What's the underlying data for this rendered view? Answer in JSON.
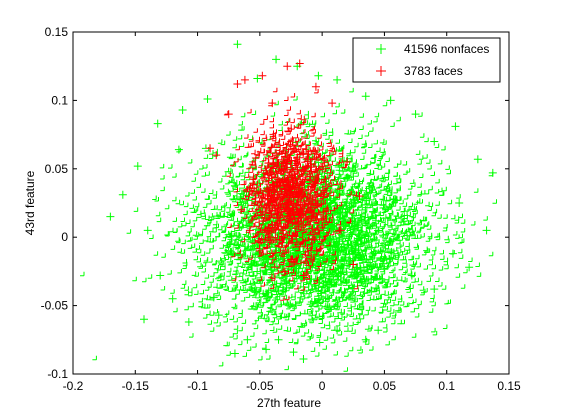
{
  "chart_data": {
    "type": "scatter",
    "title": "",
    "xlabel": "27th feature",
    "ylabel": "43rd feature",
    "xlim": [
      -0.2,
      0.15
    ],
    "ylim": [
      -0.1,
      0.15
    ],
    "xticks": [
      -0.2,
      -0.15,
      -0.1,
      -0.05,
      0,
      0.05,
      0.1,
      0.15
    ],
    "xtick_labels": [
      "-0.2",
      "-0.15",
      "-0.1",
      "-0.05",
      "0",
      "0.05",
      "0.1",
      "0.15"
    ],
    "yticks": [
      -0.1,
      -0.05,
      0,
      0.05,
      0.1,
      0.15
    ],
    "ytick_labels": [
      "-0.1",
      "-0.05",
      "0",
      "0.05",
      "0.1",
      "0.15"
    ],
    "grid": false,
    "legend_position": "top-right",
    "marker": "+",
    "series": [
      {
        "name": "41596 nonfaces",
        "color": "#00ff00",
        "count": 41596,
        "distribution": {
          "mean_x": -0.005,
          "mean_y": 0.0,
          "sd_x": 0.045,
          "sd_y": 0.032
        },
        "points": [
          [
            -0.17,
            0.015
          ],
          [
            -0.16,
            0.031
          ],
          [
            -0.143,
            -0.06
          ],
          [
            -0.14,
            0.005
          ],
          [
            -0.148,
            0.052
          ],
          [
            -0.13,
            -0.028
          ],
          [
            -0.12,
            -0.045
          ],
          [
            -0.107,
            -0.062
          ],
          [
            -0.087,
            -0.044
          ],
          [
            -0.083,
            -0.057
          ],
          [
            -0.07,
            -0.085
          ],
          [
            -0.06,
            -0.075
          ],
          [
            -0.045,
            -0.082
          ],
          [
            -0.035,
            -0.075
          ],
          [
            -0.023,
            -0.084
          ],
          [
            -0.015,
            -0.089
          ],
          [
            -0.002,
            -0.077
          ],
          [
            0.012,
            -0.068
          ],
          [
            0.035,
            -0.075
          ],
          [
            0.045,
            -0.068
          ],
          [
            0.072,
            -0.028
          ],
          [
            0.09,
            -0.038
          ],
          [
            0.105,
            -0.012
          ],
          [
            0.118,
            -0.022
          ],
          [
            0.132,
            0.005
          ],
          [
            0.137,
            0.047
          ],
          [
            0.125,
            0.057
          ],
          [
            0.11,
            0.025
          ],
          [
            0.107,
            0.081
          ],
          [
            0.09,
            0.07
          ],
          [
            0.075,
            0.09
          ],
          [
            0.055,
            0.1
          ],
          [
            0.035,
            0.103
          ],
          [
            0.012,
            0.115
          ],
          [
            -0.003,
            0.118
          ],
          [
            -0.02,
            0.125
          ],
          [
            -0.037,
            0.13
          ],
          [
            -0.052,
            0.116
          ],
          [
            -0.068,
            0.141
          ],
          [
            -0.092,
            0.101
          ],
          [
            -0.112,
            0.093
          ],
          [
            -0.132,
            0.083
          ],
          [
            -0.115,
            0.064
          ]
        ]
      },
      {
        "name": "3783 faces",
        "color": "#ff0000",
        "count": 3783,
        "distribution": {
          "mean_x": -0.025,
          "mean_y": 0.028,
          "sd_x": 0.017,
          "sd_y": 0.025
        },
        "points": [
          [
            -0.068,
            0.112
          ],
          [
            -0.062,
            0.115
          ],
          [
            -0.048,
            0.118
          ],
          [
            -0.028,
            0.125
          ],
          [
            -0.018,
            0.127
          ],
          [
            -0.005,
            0.11
          ],
          [
            -0.085,
            0.06
          ],
          [
            -0.09,
            0.065
          ],
          [
            -0.075,
            0.09
          ],
          [
            -0.065,
            0.02
          ],
          [
            -0.058,
            0.005
          ],
          [
            0.015,
            0.005
          ],
          [
            0.025,
            -0.02
          ],
          [
            0.02,
            0.055
          ],
          [
            0.03,
            0.03
          ],
          [
            -0.03,
            -0.025
          ],
          [
            -0.015,
            -0.028
          ],
          [
            -0.05,
            -0.01
          ],
          [
            -0.04,
            0.098
          ],
          [
            0.008,
            0.098
          ]
        ]
      }
    ]
  }
}
